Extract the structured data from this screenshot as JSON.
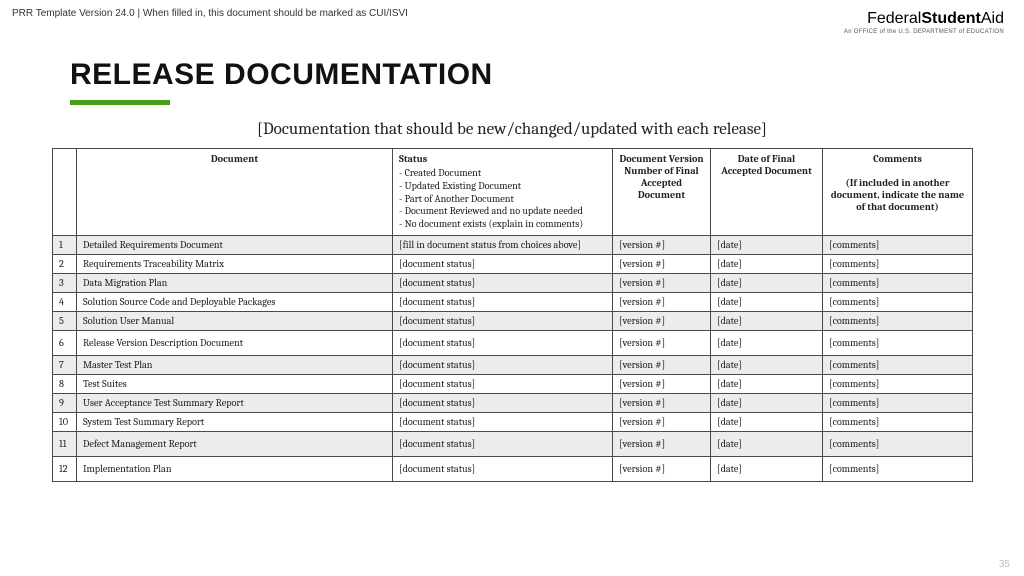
{
  "header": {
    "template_note": "PRR Template Version 24.0 | When filled in, this document should be marked as CUI/ISVI",
    "page_number": "35"
  },
  "logo": {
    "federal": "Federal",
    "student": "Student",
    "aid": "Aid",
    "subline": "An OFFICE of the U.S. DEPARTMENT of EDUCATION"
  },
  "title": "RELEASE DOCUMENTATION",
  "subtitle": "[Documentation that should be new/changed/updated with each release]",
  "columns": {
    "doc": "Document",
    "status": "Status",
    "status_options": [
      "- Created Document",
      "- Updated Existing Document",
      "- Part of Another Document",
      "- Document Reviewed and no update needed",
      "- No document exists (explain in comments)"
    ],
    "version": "Document Version Number of Final Accepted Document",
    "date": "Date of Final Accepted Document",
    "comments": "Comments",
    "comments_sub": "(If included in another document, indicate the name of that document)"
  },
  "rows": [
    {
      "n": "1",
      "doc": "Detailed Requirements Document",
      "status": "[fill in document status from choices above]",
      "ver": "[version #]",
      "date": "[date]",
      "comm": "[comments]",
      "shade": true
    },
    {
      "n": "2",
      "doc": "Requirements Traceability Matrix",
      "status": "[document status]",
      "ver": "[version #]",
      "date": "[date]",
      "comm": "[comments]",
      "shade": false
    },
    {
      "n": "3",
      "doc": "Data Migration Plan",
      "status": "[document status]",
      "ver": "[version #]",
      "date": "[date]",
      "comm": "[comments]",
      "shade": true
    },
    {
      "n": "4",
      "doc": "Solution Source Code and Deployable  Packages",
      "status": "[document status]",
      "ver": "[version #]",
      "date": "[date]",
      "comm": "[comments]",
      "shade": false
    },
    {
      "n": "5",
      "doc": "Solution User Manual",
      "status": "[document status]",
      "ver": "[version #]",
      "date": "[date]",
      "comm": "[comments]",
      "shade": true
    },
    {
      "n": "6",
      "doc": "Release Version Description Document",
      "status": "[document status]",
      "ver": "[version #]",
      "date": "[date]",
      "comm": "[comments]",
      "shade": false,
      "tall": true
    },
    {
      "n": "7",
      "doc": "Master Test Plan",
      "status": "[document status]",
      "ver": "[version #]",
      "date": "[date]",
      "comm": "[comments]",
      "shade": true
    },
    {
      "n": "8",
      "doc": "Test Suites",
      "status": "[document status]",
      "ver": "[version #]",
      "date": "[date]",
      "comm": "[comments]",
      "shade": false
    },
    {
      "n": "9",
      "doc": "User Acceptance Test Summary Report",
      "status": "[document status]",
      "ver": "[version #]",
      "date": "[date]",
      "comm": "[comments]",
      "shade": true
    },
    {
      "n": "10",
      "doc": "System Test Summary Report",
      "status": "[document status]",
      "ver": "[version #]",
      "date": "[date]",
      "comm": "[comments]",
      "shade": false
    },
    {
      "n": "11",
      "doc": "Defect Management Report",
      "status": "[document status]",
      "ver": "[version #]",
      "date": "[date]",
      "comm": "[comments]",
      "shade": true,
      "tall": true
    },
    {
      "n": "12",
      "doc": "Implementation Plan",
      "status": "[document status]",
      "ver": "[version #]",
      "date": "[date]",
      "comm": "[comments]",
      "shade": false,
      "tall": true
    }
  ],
  "style": {
    "page_bg": "#ffffff",
    "accent": "#44a012",
    "border": "#4a4a4a",
    "shade_bg": "#ececec"
  }
}
